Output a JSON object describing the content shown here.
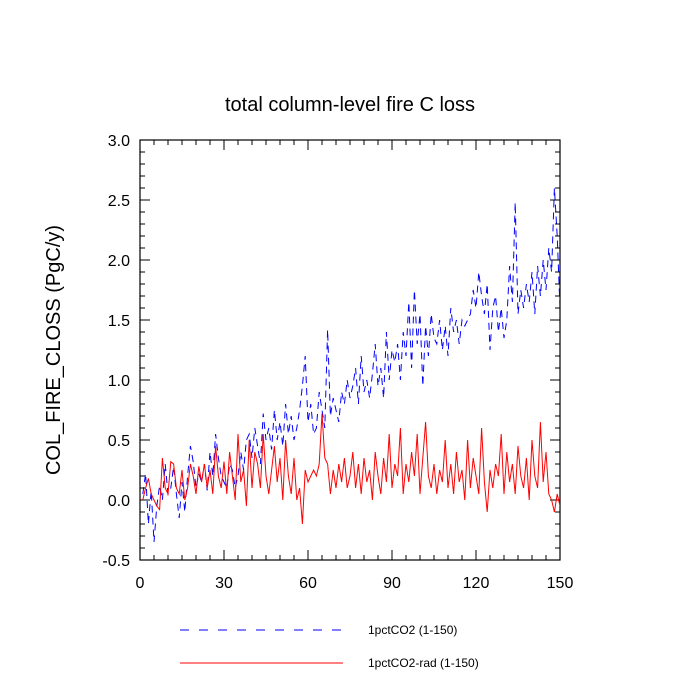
{
  "chart_data": {
    "type": "line",
    "title": "total column-level fire C loss",
    "ylabel": "COL_FIRE_CLOSS  (PgC/y)",
    "xlabel": "",
    "xlim": [
      0,
      150
    ],
    "ylim": [
      -0.5,
      3.0
    ],
    "xticks": [
      0,
      30,
      60,
      90,
      120,
      150
    ],
    "xtick_labels": [
      "0",
      "30",
      "60",
      "90",
      "120",
      "150"
    ],
    "yticks": [
      -0.5,
      0.0,
      0.5,
      1.0,
      1.5,
      2.0,
      2.5,
      3.0
    ],
    "ytick_labels": [
      "-0.5",
      "0.0",
      "0.5",
      "1.0",
      "1.5",
      "2.0",
      "2.5",
      "3.0"
    ],
    "grid": false,
    "legend_position": "bottom",
    "series": [
      {
        "name": "1pctCO2 (1-150)",
        "color": "#0000ff",
        "dash": "dashed",
        "x_start": 1,
        "values": [
          0.05,
          0.22,
          -0.2,
          0.08,
          -0.35,
          -0.05,
          0.12,
          0.0,
          0.3,
          0.05,
          0.1,
          0.28,
          0.05,
          -0.15,
          0.15,
          -0.1,
          0.2,
          0.45,
          0.32,
          0.1,
          0.22,
          0.15,
          0.3,
          0.08,
          0.4,
          0.2,
          0.55,
          0.35,
          0.2,
          0.15,
          0.1,
          0.3,
          0.25,
          0.1,
          0.2,
          0.4,
          0.25,
          0.5,
          0.55,
          0.35,
          0.6,
          0.45,
          0.3,
          0.72,
          0.5,
          0.6,
          0.42,
          0.75,
          0.5,
          0.65,
          0.45,
          0.8,
          0.55,
          0.7,
          0.5,
          0.6,
          0.75,
          0.95,
          1.2,
          0.65,
          0.8,
          0.55,
          0.6,
          0.9,
          0.75,
          0.6,
          1.42,
          0.7,
          0.85,
          0.75,
          0.65,
          0.9,
          0.8,
          1.0,
          0.85,
          0.95,
          1.1,
          0.8,
          1.2,
          0.9,
          1.0,
          0.85,
          1.05,
          1.3,
          0.95,
          1.1,
          0.85,
          1.4,
          1.0,
          1.25,
          1.15,
          1.3,
          1.0,
          1.4,
          1.2,
          1.65,
          1.1,
          1.75,
          1.3,
          1.55,
          0.95,
          1.45,
          1.2,
          1.55,
          1.35,
          1.3,
          1.5,
          1.25,
          1.45,
          1.2,
          1.6,
          1.4,
          1.5,
          1.3,
          1.5,
          1.45,
          1.5,
          1.55,
          1.75,
          1.6,
          1.9,
          1.7,
          1.55,
          1.8,
          1.25,
          1.6,
          1.7,
          1.4,
          1.6,
          1.35,
          1.5,
          1.95,
          1.65,
          2.48,
          1.55,
          1.75,
          1.6,
          1.8,
          1.65,
          1.9,
          1.55,
          1.95,
          1.7,
          2.0,
          1.75,
          2.1,
          1.9,
          2.6,
          2.2,
          1.6,
          2.3,
          1.75,
          2.0,
          1.6
        ]
      },
      {
        "name": "1pctCO2-rad (1-150)",
        "color": "#ff0000",
        "dash": "solid",
        "x_start": 1,
        "values": [
          0.0,
          0.1,
          0.18,
          0.05,
          0.0,
          -0.05,
          -0.08,
          0.35,
          0.1,
          0.05,
          0.32,
          0.3,
          0.1,
          0.05,
          0.25,
          0.0,
          0.1,
          0.3,
          0.2,
          0.05,
          0.28,
          0.15,
          0.3,
          0.1,
          0.25,
          0.05,
          0.45,
          0.2,
          0.1,
          0.32,
          0.05,
          0.4,
          0.2,
          0.0,
          0.55,
          0.15,
          0.25,
          -0.05,
          0.5,
          0.1,
          0.4,
          0.3,
          0.1,
          0.55,
          0.2,
          0.05,
          0.25,
          0.45,
          0.15,
          0.35,
          0.0,
          0.5,
          0.2,
          0.05,
          0.35,
          0.0,
          0.1,
          -0.2,
          0.25,
          0.15,
          0.2,
          0.25,
          0.2,
          0.3,
          0.72,
          0.35,
          0.3,
          0.05,
          0.25,
          0.1,
          0.3,
          0.15,
          0.35,
          0.1,
          0.2,
          0.4,
          0.1,
          0.3,
          0.05,
          0.35,
          0.15,
          0.25,
          0.0,
          0.4,
          0.2,
          0.05,
          0.35,
          0.15,
          0.55,
          0.1,
          0.3,
          0.2,
          0.6,
          0.05,
          0.3,
          0.15,
          0.4,
          0.2,
          0.55,
          0.05,
          0.35,
          0.65,
          0.2,
          0.1,
          0.3,
          0.05,
          0.25,
          0.15,
          0.5,
          0.1,
          0.3,
          0.05,
          0.4,
          0.15,
          0.25,
          0.0,
          0.5,
          0.1,
          0.35,
          0.2,
          0.05,
          0.6,
          0.15,
          -0.1,
          0.25,
          0.1,
          0.3,
          0.2,
          0.55,
          0.05,
          0.4,
          0.15,
          0.3,
          0.05,
          0.45,
          0.2,
          0.1,
          0.35,
          0.0,
          0.5,
          0.2,
          0.1,
          0.65,
          0.15,
          0.4,
          0.05,
          0.0,
          -0.1,
          0.05,
          -0.05
        ]
      }
    ]
  }
}
